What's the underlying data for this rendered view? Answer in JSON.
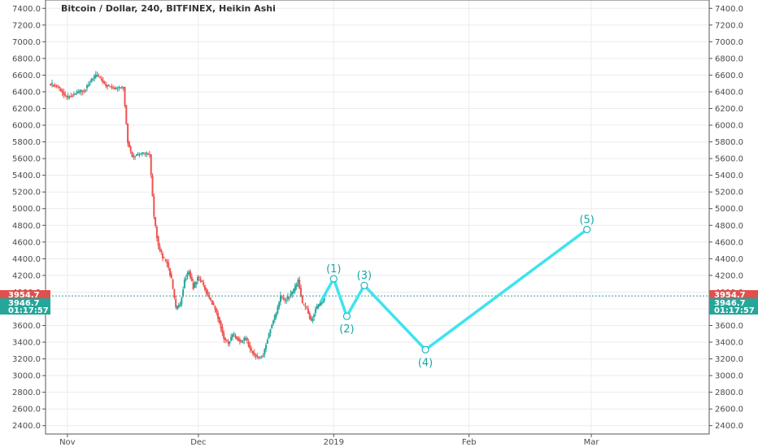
{
  "chart_data": {
    "type": "line",
    "title": "Bitcoin / Dollar, 240, BITFINEX, Heikin Ashi",
    "ylim": [
      2300,
      7500
    ],
    "yticks": [
      2400,
      2600,
      2800,
      3000,
      3200,
      3400,
      3600,
      3800,
      4000,
      4200,
      4400,
      4600,
      4800,
      5000,
      5200,
      5400,
      5600,
      5800,
      6000,
      6200,
      6400,
      6600,
      6800,
      7000,
      7200,
      7400
    ],
    "ytick_labels": [
      "2400.0",
      "2600.0",
      "2800.0",
      "3000.0",
      "3200.0",
      "3400.0",
      "3600.0",
      "3800.0",
      "4000.0",
      "4200.0",
      "4400.0",
      "4600.0",
      "4800.0",
      "5000.0",
      "5200.0",
      "5400.0",
      "5600.0",
      "5800.0",
      "6000.0",
      "6200.0",
      "6400.0",
      "6600.0",
      "6800.0",
      "7000.0",
      "7200.0",
      "7400.0"
    ],
    "xlim": [
      "2018-10-27",
      "2019-03-28"
    ],
    "xticks": [
      {
        "date": "2018-11-01",
        "label": "Nov"
      },
      {
        "date": "2018-12-01",
        "label": "Dec"
      },
      {
        "date": "2019-01-01",
        "label": "2019"
      },
      {
        "date": "2019-02-01",
        "label": "Feb"
      },
      {
        "date": "2019-03-01",
        "label": "Mar"
      }
    ],
    "grid": true,
    "price_series": {
      "name": "",
      "points": [
        {
          "x": "2018-10-28",
          "y": 6500
        },
        {
          "x": "2018-10-30",
          "y": 6460
        },
        {
          "x": "2018-11-01",
          "y": 6330
        },
        {
          "x": "2018-11-03",
          "y": 6380
        },
        {
          "x": "2018-11-05",
          "y": 6420
        },
        {
          "x": "2018-11-07",
          "y": 6560
        },
        {
          "x": "2018-11-08",
          "y": 6600
        },
        {
          "x": "2018-11-10",
          "y": 6480
        },
        {
          "x": "2018-11-12",
          "y": 6440
        },
        {
          "x": "2018-11-14",
          "y": 6460
        },
        {
          "x": "2018-11-15",
          "y": 5800
        },
        {
          "x": "2018-11-16",
          "y": 5620
        },
        {
          "x": "2018-11-18",
          "y": 5660
        },
        {
          "x": "2018-11-20",
          "y": 5650
        },
        {
          "x": "2018-11-21",
          "y": 4900
        },
        {
          "x": "2018-11-22",
          "y": 4550
        },
        {
          "x": "2018-11-23",
          "y": 4420
        },
        {
          "x": "2018-11-24",
          "y": 4350
        },
        {
          "x": "2018-11-25",
          "y": 4150
        },
        {
          "x": "2018-11-26",
          "y": 3800
        },
        {
          "x": "2018-11-27",
          "y": 3850
        },
        {
          "x": "2018-11-28",
          "y": 4150
        },
        {
          "x": "2018-11-29",
          "y": 4250
        },
        {
          "x": "2018-11-30",
          "y": 4050
        },
        {
          "x": "2018-12-01",
          "y": 4180
        },
        {
          "x": "2018-12-02",
          "y": 4120
        },
        {
          "x": "2018-12-03",
          "y": 4000
        },
        {
          "x": "2018-12-04",
          "y": 3900
        },
        {
          "x": "2018-12-05",
          "y": 3800
        },
        {
          "x": "2018-12-06",
          "y": 3650
        },
        {
          "x": "2018-12-07",
          "y": 3450
        },
        {
          "x": "2018-12-08",
          "y": 3380
        },
        {
          "x": "2018-12-09",
          "y": 3500
        },
        {
          "x": "2018-12-10",
          "y": 3450
        },
        {
          "x": "2018-12-11",
          "y": 3400
        },
        {
          "x": "2018-12-12",
          "y": 3450
        },
        {
          "x": "2018-12-13",
          "y": 3320
        },
        {
          "x": "2018-12-14",
          "y": 3250
        },
        {
          "x": "2018-12-15",
          "y": 3220
        },
        {
          "x": "2018-12-16",
          "y": 3250
        },
        {
          "x": "2018-12-17",
          "y": 3450
        },
        {
          "x": "2018-12-18",
          "y": 3620
        },
        {
          "x": "2018-12-19",
          "y": 3750
        },
        {
          "x": "2018-12-20",
          "y": 3950
        },
        {
          "x": "2018-12-21",
          "y": 3900
        },
        {
          "x": "2018-12-22",
          "y": 3950
        },
        {
          "x": "2018-12-23",
          "y": 4020
        },
        {
          "x": "2018-12-24",
          "y": 4150
        },
        {
          "x": "2018-12-25",
          "y": 3850
        },
        {
          "x": "2018-12-26",
          "y": 3800
        },
        {
          "x": "2018-12-27",
          "y": 3650
        },
        {
          "x": "2018-12-28",
          "y": 3800
        },
        {
          "x": "2018-12-29",
          "y": 3850
        },
        {
          "x": "2018-12-30",
          "y": 3920
        }
      ]
    },
    "wave_series": {
      "name": "",
      "points": [
        {
          "x": "2018-12-29",
          "y": 3880,
          "label": ""
        },
        {
          "x": "2019-01-01",
          "y": 4160,
          "label": "(1)"
        },
        {
          "x": "2019-01-04",
          "y": 3710,
          "label": "(2)"
        },
        {
          "x": "2019-01-08",
          "y": 4080,
          "label": "(3)"
        },
        {
          "x": "2019-01-22",
          "y": 3310,
          "label": "(4)"
        },
        {
          "x": "2019-02-28",
          "y": 4750,
          "label": "(5)"
        }
      ],
      "color": "#3ee3ee"
    },
    "price_badges": [
      {
        "y": 3954.7,
        "label": "3954.7",
        "color": "#e0504c"
      },
      {
        "y": 3946.7,
        "label": "3946.7",
        "color": "#26a69a"
      },
      {
        "label": "01:17:57",
        "color": "#26a69a"
      }
    ],
    "last_price": 3954.7,
    "colors": {
      "up": "#26a69a",
      "down": "#ef5350",
      "grid": "#ececf1",
      "axis": "#555555"
    }
  }
}
